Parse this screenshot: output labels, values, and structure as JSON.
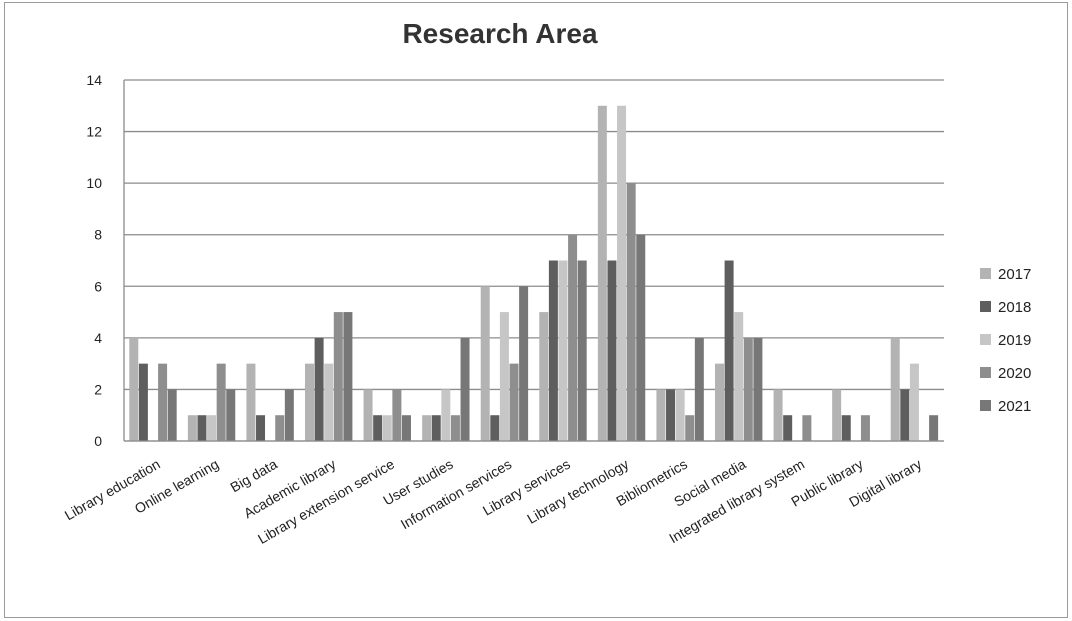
{
  "chart_data": {
    "type": "bar",
    "title": "Research Area",
    "xlabel": "",
    "ylabel": "",
    "ylim": [
      0,
      14
    ],
    "yticks": [
      0,
      2,
      4,
      6,
      8,
      10,
      12,
      14
    ],
    "grid": true,
    "legend_position": "right",
    "categories": [
      "Library education",
      "Online learning",
      "Big data",
      "Academic library",
      "Library extension service",
      "User studies",
      "Information services",
      "Library services",
      "Library technology",
      "Bibliometrics",
      "Social media",
      "Integrated library system",
      "Public library",
      "Digital library"
    ],
    "series": [
      {
        "name": "2017",
        "color": "#b3b3b3",
        "values": [
          4,
          1,
          3,
          3,
          2,
          1,
          6,
          5,
          13,
          2,
          3,
          2,
          2,
          4
        ]
      },
      {
        "name": "2018",
        "color": "#5e5e5e",
        "values": [
          3,
          1,
          1,
          4,
          1,
          1,
          1,
          7,
          7,
          2,
          7,
          1,
          1,
          2
        ]
      },
      {
        "name": "2019",
        "color": "#c6c6c6",
        "values": [
          0,
          1,
          0,
          3,
          1,
          2,
          5,
          7,
          13,
          2,
          5,
          0,
          0,
          3
        ]
      },
      {
        "name": "2020",
        "color": "#8e8e8e",
        "values": [
          3,
          3,
          1,
          5,
          2,
          1,
          3,
          8,
          10,
          1,
          4,
          1,
          1,
          0
        ]
      },
      {
        "name": "2021",
        "color": "#777777",
        "values": [
          2,
          2,
          2,
          5,
          1,
          4,
          6,
          7,
          8,
          4,
          4,
          0,
          0,
          1
        ]
      }
    ]
  }
}
